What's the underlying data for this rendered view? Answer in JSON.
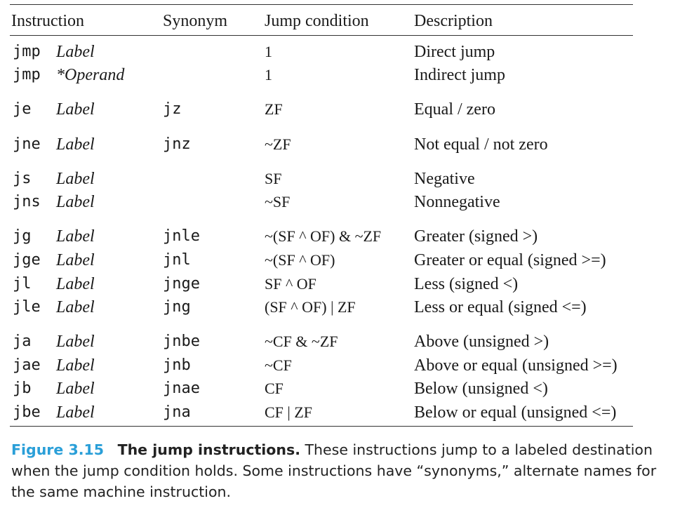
{
  "table": {
    "headers": {
      "instruction": "Instruction",
      "synonym": "Synonym",
      "jump_condition": "Jump condition",
      "description": "Description"
    },
    "rows": [
      {
        "instr": "jmp",
        "operand": "Label",
        "synonym": "",
        "condition": "1",
        "description": "Direct jump"
      },
      {
        "instr": "jmp",
        "operand": "*Operand",
        "synonym": "",
        "condition": "1",
        "description": "Indirect jump"
      },
      {
        "instr": "je",
        "operand": "Label",
        "synonym": "jz",
        "condition": "ZF",
        "description": "Equal / zero"
      },
      {
        "instr": "jne",
        "operand": "Label",
        "synonym": "jnz",
        "condition": "~ZF",
        "description": "Not equal / not zero"
      },
      {
        "instr": "js",
        "operand": "Label",
        "synonym": "",
        "condition": "SF",
        "description": "Negative"
      },
      {
        "instr": "jns",
        "operand": "Label",
        "synonym": "",
        "condition": "~SF",
        "description": "Nonnegative"
      },
      {
        "instr": "jg",
        "operand": "Label",
        "synonym": "jnle",
        "condition": "~(SF ^ OF) & ~ZF",
        "description": "Greater (signed >)"
      },
      {
        "instr": "jge",
        "operand": "Label",
        "synonym": "jnl",
        "condition": "~(SF ^ OF)",
        "description": "Greater or equal (signed >=)"
      },
      {
        "instr": "jl",
        "operand": "Label",
        "synonym": "jnge",
        "condition": "SF ^ OF",
        "description": "Less (signed <)"
      },
      {
        "instr": "jle",
        "operand": "Label",
        "synonym": "jng",
        "condition": "(SF ^ OF) | ZF",
        "description": "Less or equal (signed <=)"
      },
      {
        "instr": "ja",
        "operand": "Label",
        "synonym": "jnbe",
        "condition": "~CF & ~ZF",
        "description": "Above (unsigned >)"
      },
      {
        "instr": "jae",
        "operand": "Label",
        "synonym": "jnb",
        "condition": "~CF",
        "description": "Above or equal (unsigned >=)"
      },
      {
        "instr": "jb",
        "operand": "Label",
        "synonym": "jnae",
        "condition": "CF",
        "description": "Below (unsigned <)"
      },
      {
        "instr": "jbe",
        "operand": "Label",
        "synonym": "jna",
        "condition": "CF | ZF",
        "description": "Below or equal (unsigned <=)"
      }
    ]
  },
  "caption": {
    "label": "Figure 3.15",
    "title": "The jump instructions.",
    "text": "These instructions jump to a labeled destination when the jump condition holds. Some instructions have “synonyms,” alternate names for the same machine instruction."
  }
}
